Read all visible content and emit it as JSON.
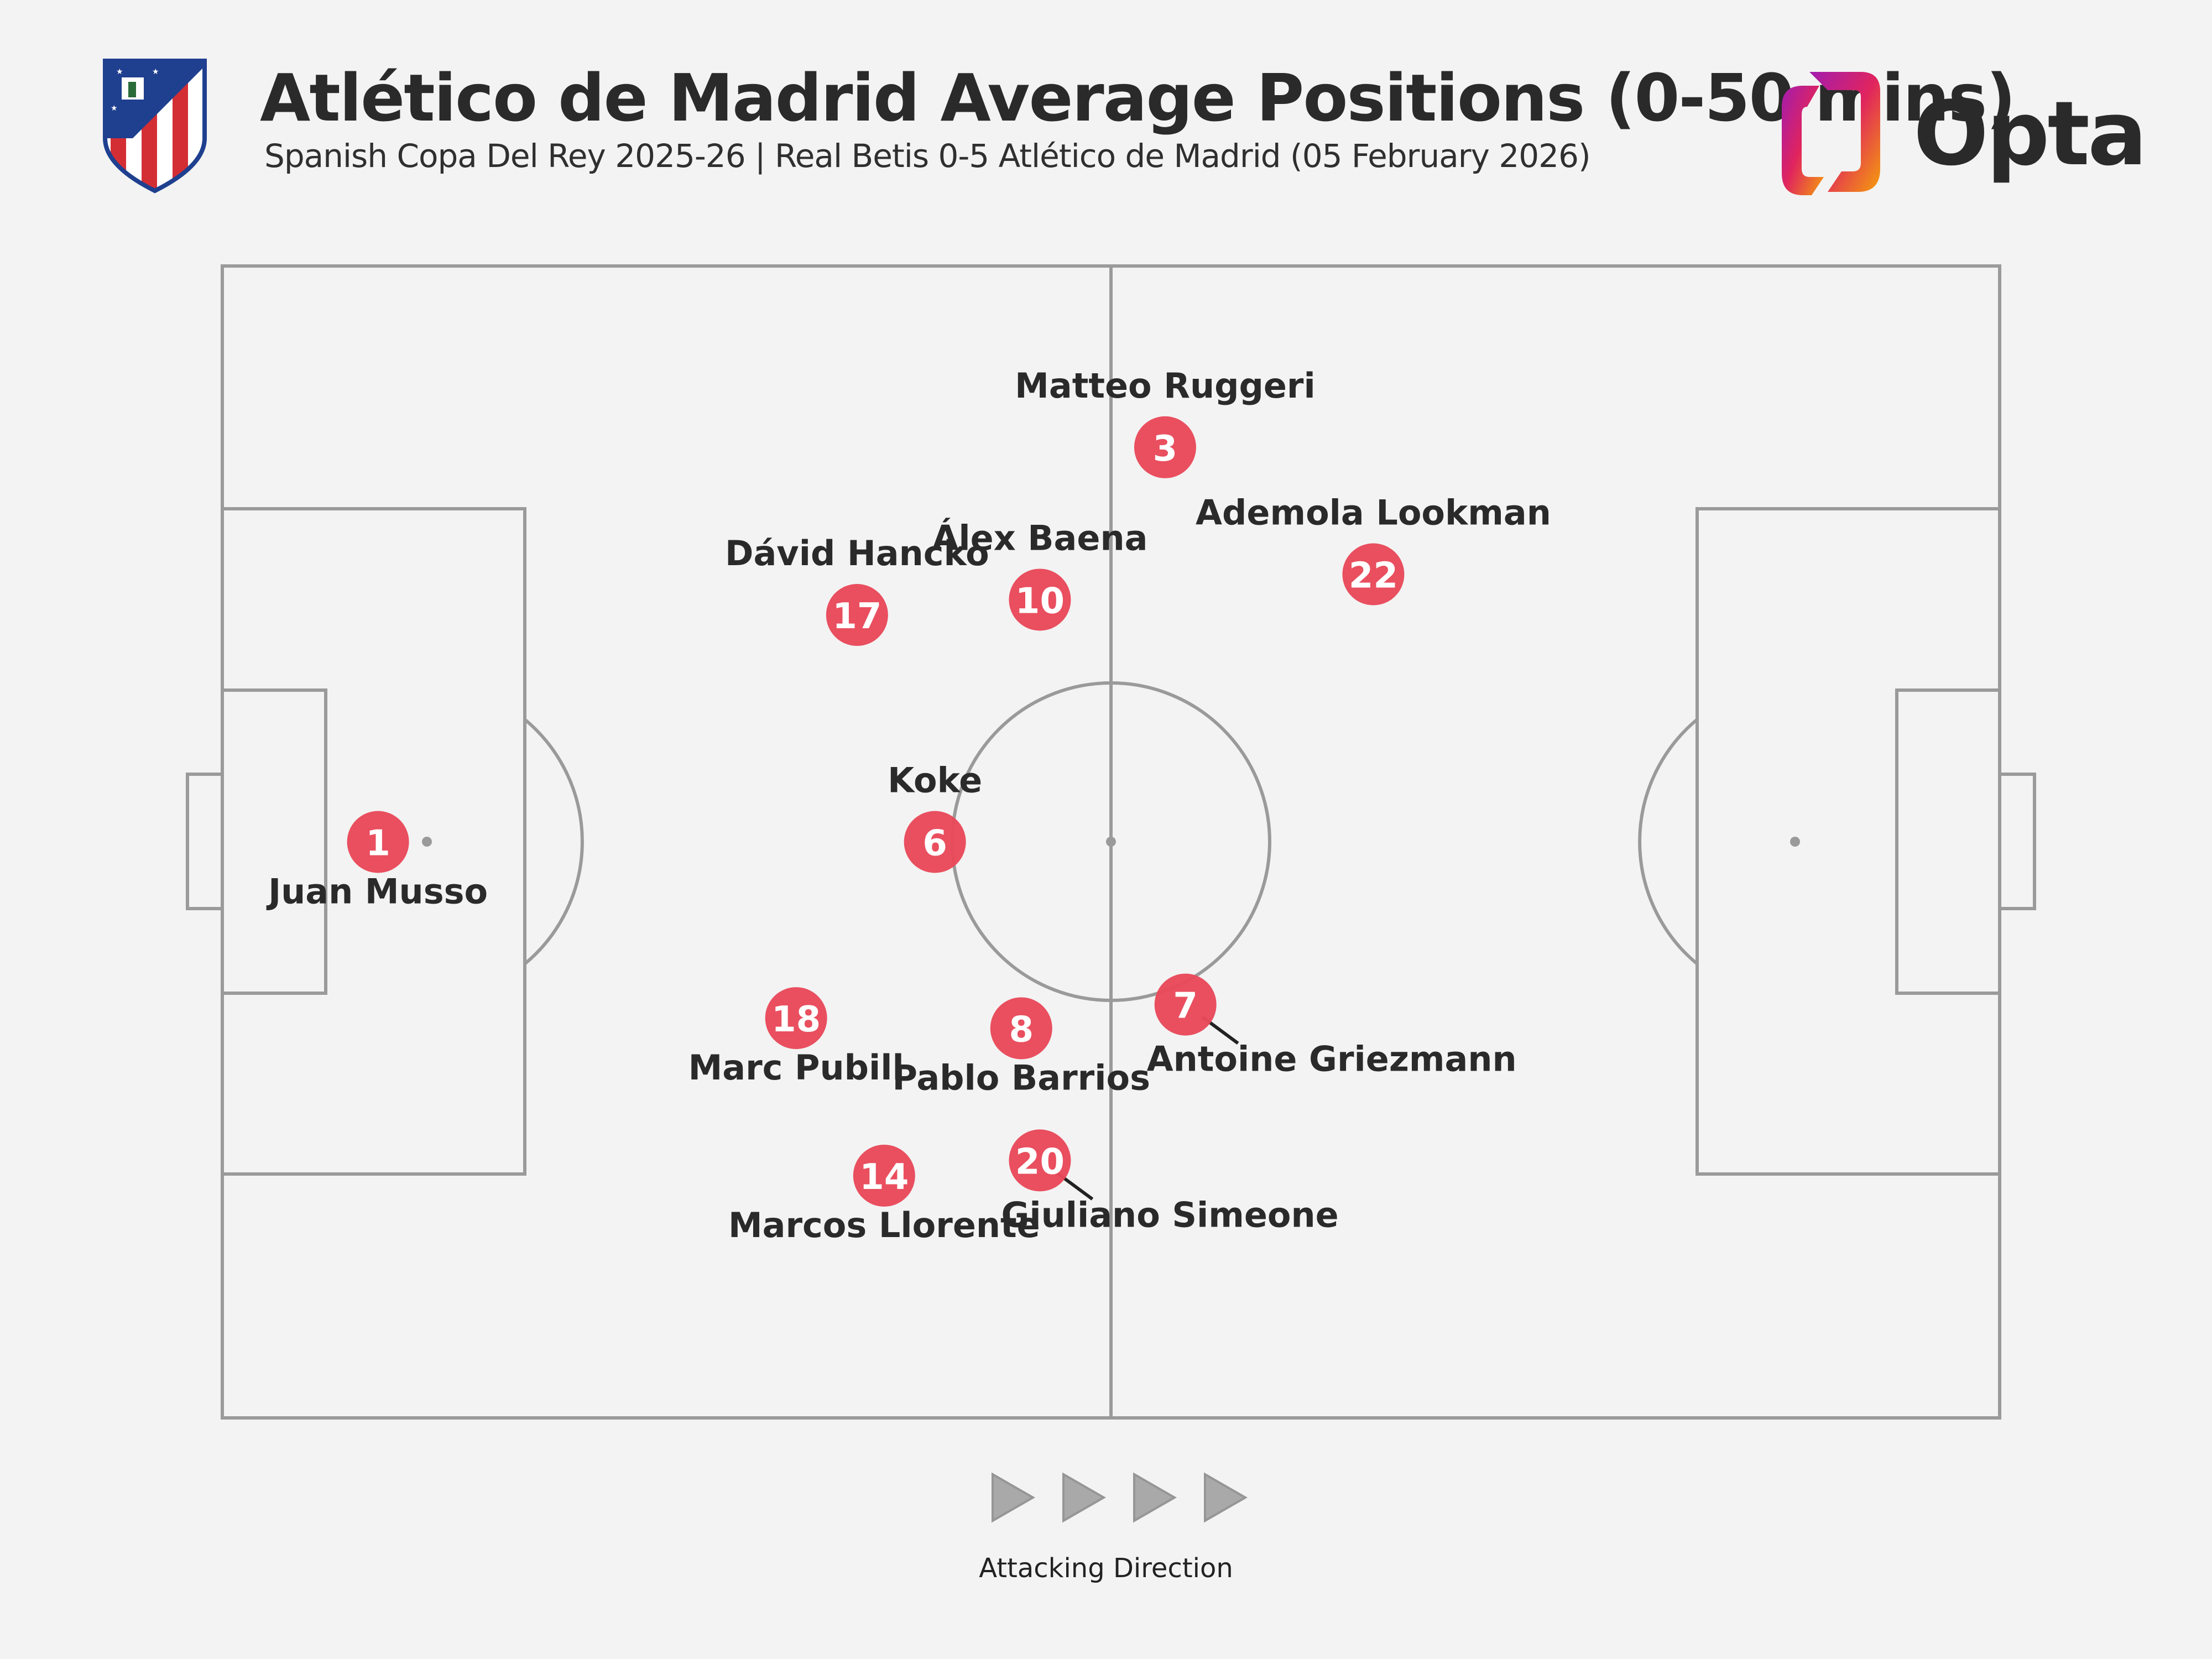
{
  "header": {
    "title": "Atlético de Madrid Average Positions (0-50 mins)",
    "subtitle": "Spanish Copa Del Rey 2025-26 | Real Betis 0-5 Atlético de Madrid (05 February 2026)",
    "crest_icon": "atletico-madrid-crest-icon",
    "brand_name": "Opta",
    "brand_icon": "opta-logo-icon"
  },
  "footer": {
    "direction_label": "Attacking Direction",
    "direction_icon": "play-triangle-icon"
  },
  "colors": {
    "background": "#f3f3f3",
    "pitch_lines": "#9a9a9a",
    "player_marker": "#e8495a",
    "marker_text": "#ffffff",
    "label_text": "#2a2a2a"
  },
  "chart_data": {
    "type": "scatter",
    "x_axis": "pitch length in yards, attacking left to right",
    "y_axis": "pitch width in yards",
    "xlim": [
      0,
      105
    ],
    "ylim": [
      0,
      68
    ],
    "players": [
      {
        "number": "1",
        "name": "Juan Musso",
        "x": 9.2,
        "y": 34.0,
        "label_pos": "below"
      },
      {
        "number": "3",
        "name": "Matteo Ruggeri",
        "x": 55.7,
        "y": 57.3,
        "label_pos": "above"
      },
      {
        "number": "22",
        "name": "Ademola Lookman",
        "x": 68.0,
        "y": 49.8,
        "label_pos": "above"
      },
      {
        "number": "10",
        "name": "Álex Baena",
        "x": 48.3,
        "y": 48.3,
        "label_pos": "above"
      },
      {
        "number": "17",
        "name": "Dávid Hancko",
        "x": 37.5,
        "y": 47.4,
        "label_pos": "above"
      },
      {
        "number": "6",
        "name": "Koke",
        "x": 42.1,
        "y": 34.0,
        "label_pos": "above"
      },
      {
        "number": "7",
        "name": "Antoine Griezmann",
        "x": 56.9,
        "y": 24.4,
        "label_pos": "below-right-leader"
      },
      {
        "number": "8",
        "name": "Pablo Barrios",
        "x": 47.2,
        "y": 23.0,
        "label_pos": "below"
      },
      {
        "number": "18",
        "name": "Marc Pubill",
        "x": 33.9,
        "y": 23.6,
        "label_pos": "below"
      },
      {
        "number": "20",
        "name": "Giuliano Simeone",
        "x": 48.3,
        "y": 15.2,
        "label_pos": "below-right-leader"
      },
      {
        "number": "14",
        "name": "Marcos Llorente",
        "x": 39.1,
        "y": 14.3,
        "label_pos": "below"
      }
    ]
  }
}
